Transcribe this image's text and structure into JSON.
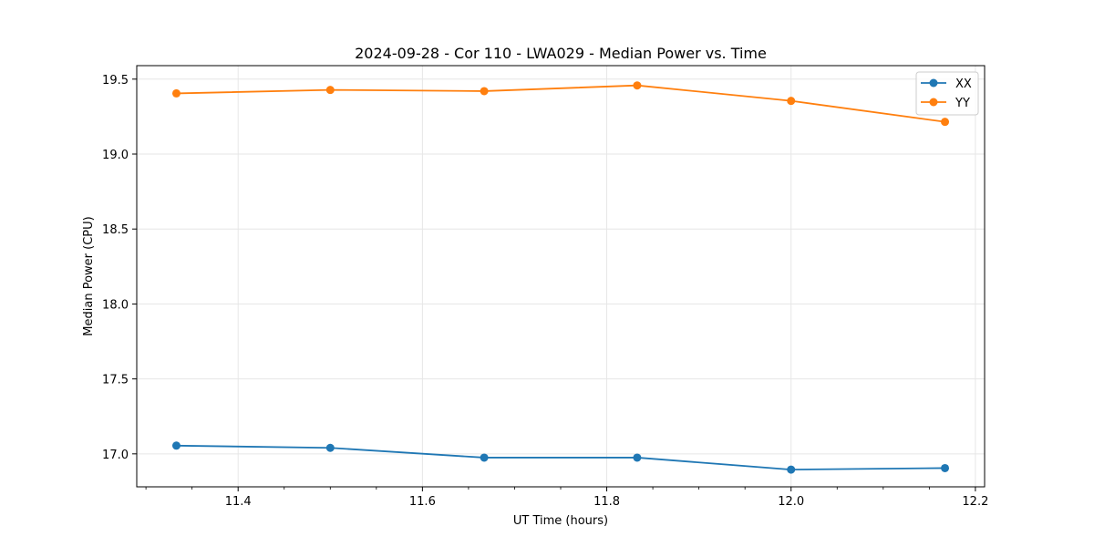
{
  "chart_data": {
    "type": "line",
    "title": "2024-09-28 - Cor 110 - LWA029 - Median Power vs. Time",
    "xlabel": "UT Time (hours)",
    "ylabel": "Median Power (CPU)",
    "xlim": [
      11.29,
      12.21
    ],
    "ylim": [
      16.78,
      19.59
    ],
    "xticks": [
      11.4,
      11.6,
      11.8,
      12.0,
      12.2
    ],
    "xtick_labels": [
      "11.4",
      "11.6",
      "11.8",
      "12.0",
      "12.2"
    ],
    "x_minor_tick_step": 0.05,
    "yticks": [
      17.0,
      17.5,
      18.0,
      18.5,
      19.0,
      19.5
    ],
    "ytick_labels": [
      "17.0",
      "17.5",
      "18.0",
      "18.5",
      "19.0",
      "19.5"
    ],
    "grid": true,
    "legend_position": "top-right",
    "x": [
      11.333,
      11.5,
      11.667,
      11.833,
      12.0,
      12.167
    ],
    "series": [
      {
        "name": "XX",
        "color": "#1f77b4",
        "values": [
          17.055,
          17.04,
          16.975,
          16.975,
          16.895,
          16.905
        ]
      },
      {
        "name": "YY",
        "color": "#ff7f0e",
        "values": [
          19.405,
          19.428,
          19.42,
          19.458,
          19.355,
          19.215
        ]
      }
    ]
  }
}
